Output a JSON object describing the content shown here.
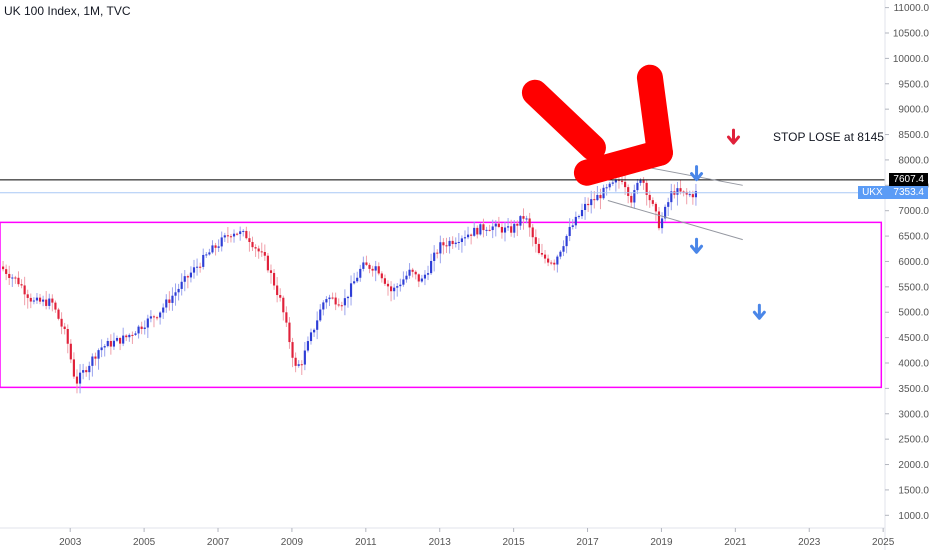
{
  "header": {
    "title": "UK 100 Index, 1M, TVC"
  },
  "annotations": {
    "stop_note": "STOP LOSE at 8145"
  },
  "price_tags": {
    "level_line": {
      "label": "7607.4",
      "value": 7607.4,
      "color": "#000000"
    },
    "last_price": {
      "symbol": "UKX",
      "label": "7353.4",
      "value": 7353.4,
      "color": "#5b9cf6"
    }
  },
  "colors": {
    "up": "#2e3ed6",
    "down": "#e0213a",
    "range_box": "#ff00ff",
    "arrow_big": "#ff0000",
    "arrow_blue": "#4a86e8",
    "arrow_red": "#e0213a",
    "channel": "#9598a1"
  },
  "chart_data": {
    "type": "candlestick",
    "title": "UK 100 Index, 1M, TVC",
    "y_axis": {
      "ticks": [
        1000,
        1500,
        2000,
        2500,
        3000,
        3500,
        4000,
        4500,
        5000,
        5500,
        6000,
        6500,
        7000,
        7500,
        8000,
        8500,
        9000,
        9500,
        10000,
        10500,
        11000
      ],
      "tick_labels": [
        "1000.0",
        "1500.0",
        "2000.0",
        "2500.0",
        "3000.0",
        "3500.0",
        "4000.0",
        "4500.0",
        "5000.0",
        "5500.0",
        "6000.0",
        "6500.0",
        "7000.0",
        "7500.0",
        "8000.0",
        "8500.0",
        "9000.0",
        "9500.0",
        "10000.0",
        "10500.0",
        "11000.0"
      ],
      "range": [
        750,
        11150
      ]
    },
    "x_axis": {
      "ticks": [
        2003,
        2005,
        2007,
        2009,
        2011,
        2013,
        2015,
        2017,
        2019,
        2021,
        2023,
        2025
      ],
      "tick_labels": [
        "2003",
        "2005",
        "2007",
        "2009",
        "2011",
        "2013",
        "2015",
        "2017",
        "2019",
        "2021",
        "2023",
        "2025"
      ],
      "range": [
        2001.1,
        2025.05
      ]
    },
    "price_path": [
      [
        2001.1,
        5900
      ],
      [
        2001.6,
        5600
      ],
      [
        2002.0,
        5200
      ],
      [
        2002.5,
        5200
      ],
      [
        2002.9,
        4500
      ],
      [
        2003.15,
        3600
      ],
      [
        2003.8,
        4300
      ],
      [
        2004.5,
        4500
      ],
      [
        2005.4,
        5000
      ],
      [
        2006.3,
        5800
      ],
      [
        2006.8,
        6200
      ],
      [
        2007.4,
        6600
      ],
      [
        2007.8,
        6500
      ],
      [
        2008.3,
        6000
      ],
      [
        2008.7,
        5200
      ],
      [
        2009.1,
        3900
      ],
      [
        2009.25,
        4000
      ],
      [
        2009.9,
        5300
      ],
      [
        2010.4,
        5200
      ],
      [
        2010.9,
        5900
      ],
      [
        2011.3,
        5900
      ],
      [
        2011.7,
        5400
      ],
      [
        2012.2,
        5800
      ],
      [
        2012.5,
        5600
      ],
      [
        2013.0,
        6300
      ],
      [
        2013.6,
        6500
      ],
      [
        2014.3,
        6700
      ],
      [
        2014.9,
        6600
      ],
      [
        2015.3,
        6900
      ],
      [
        2015.7,
        6100
      ],
      [
        2016.1,
        6000
      ],
      [
        2016.5,
        6600
      ],
      [
        2016.95,
        7100
      ],
      [
        2017.5,
        7400
      ],
      [
        2017.95,
        7650
      ],
      [
        2018.2,
        7200
      ],
      [
        2018.45,
        7700
      ],
      [
        2018.95,
        6700
      ],
      [
        2019.3,
        7400
      ],
      [
        2019.7,
        7300
      ],
      [
        2019.95,
        7350
      ]
    ],
    "horizontal_levels": [
      {
        "value": 7607.4
      },
      {
        "value": 7353.4
      }
    ],
    "range_box": {
      "x": [
        2001.1,
        2024.95
      ],
      "y": [
        3520,
        6770
      ]
    },
    "channel_lines": [
      {
        "from": [
          2017.55,
          8000
        ],
        "to": [
          2021.2,
          7500
        ]
      },
      {
        "from": [
          2017.55,
          7200
        ],
        "to": [
          2021.2,
          6430
        ]
      }
    ],
    "markers": {
      "big_arrow_tip": [
        2017.2,
        7650
      ],
      "small_red_arrow": [
        2020.95,
        8450
      ],
      "blue_arrows": [
        [
          2019.95,
          7730
        ],
        [
          2019.95,
          6300
        ],
        [
          2021.65,
          5000
        ]
      ]
    }
  }
}
